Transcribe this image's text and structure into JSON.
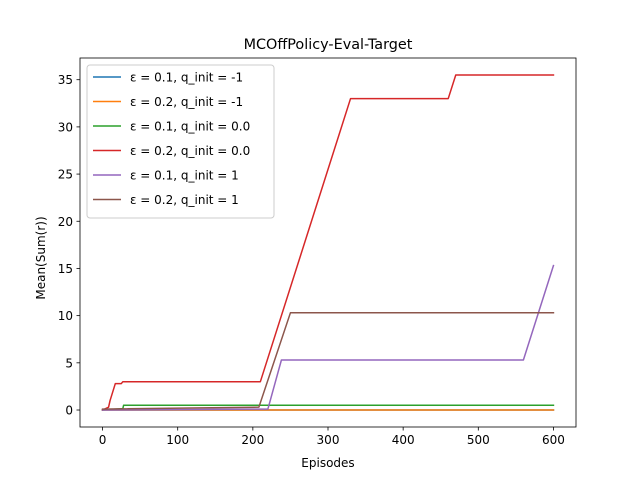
{
  "chart_data": {
    "type": "line",
    "title": "MCOffPolicy-Eval-Target",
    "xlabel": "Episodes",
    "ylabel": "Mean(Sum(r))",
    "xlim": [
      -30,
      630
    ],
    "ylim": [
      -1.8,
      37.3
    ],
    "xticks": [
      0,
      100,
      200,
      300,
      400,
      500,
      600
    ],
    "yticks": [
      0,
      5,
      10,
      15,
      20,
      25,
      30,
      35
    ],
    "grid": false,
    "legend_position": "top-left",
    "series": [
      {
        "name": "ε = 0.1, q_init = -1",
        "color": "#1f77b4",
        "x": [
          0,
          600
        ],
        "y": [
          0,
          0
        ]
      },
      {
        "name": "ε = 0.2, q_init = -1",
        "color": "#ff7f0e",
        "x": [
          0,
          600
        ],
        "y": [
          0,
          0
        ]
      },
      {
        "name": "ε = 0.1, q_init = 0.0",
        "color": "#2ca02c",
        "x": [
          0,
          27,
          28,
          600
        ],
        "y": [
          0,
          0.15,
          0.5,
          0.5
        ]
      },
      {
        "name": "ε = 0.2, q_init = 0.0",
        "color": "#d62728",
        "x": [
          0,
          8,
          10,
          17,
          18,
          25,
          27,
          210,
          330,
          460,
          470,
          600
        ],
        "y": [
          0,
          0.3,
          1.0,
          2.8,
          2.8,
          2.8,
          3.0,
          3.0,
          33.0,
          33.0,
          35.5,
          35.5
        ]
      },
      {
        "name": "ε = 0.1, q_init = 1",
        "color": "#9467bd",
        "x": [
          0,
          220,
          238,
          560,
          600
        ],
        "y": [
          0,
          0.1,
          5.3,
          5.3,
          15.3
        ]
      },
      {
        "name": "ε = 0.2, q_init = 1",
        "color": "#8c564b",
        "x": [
          0,
          208,
          250,
          600
        ],
        "y": [
          0.1,
          0.3,
          10.3,
          10.3
        ]
      }
    ]
  }
}
